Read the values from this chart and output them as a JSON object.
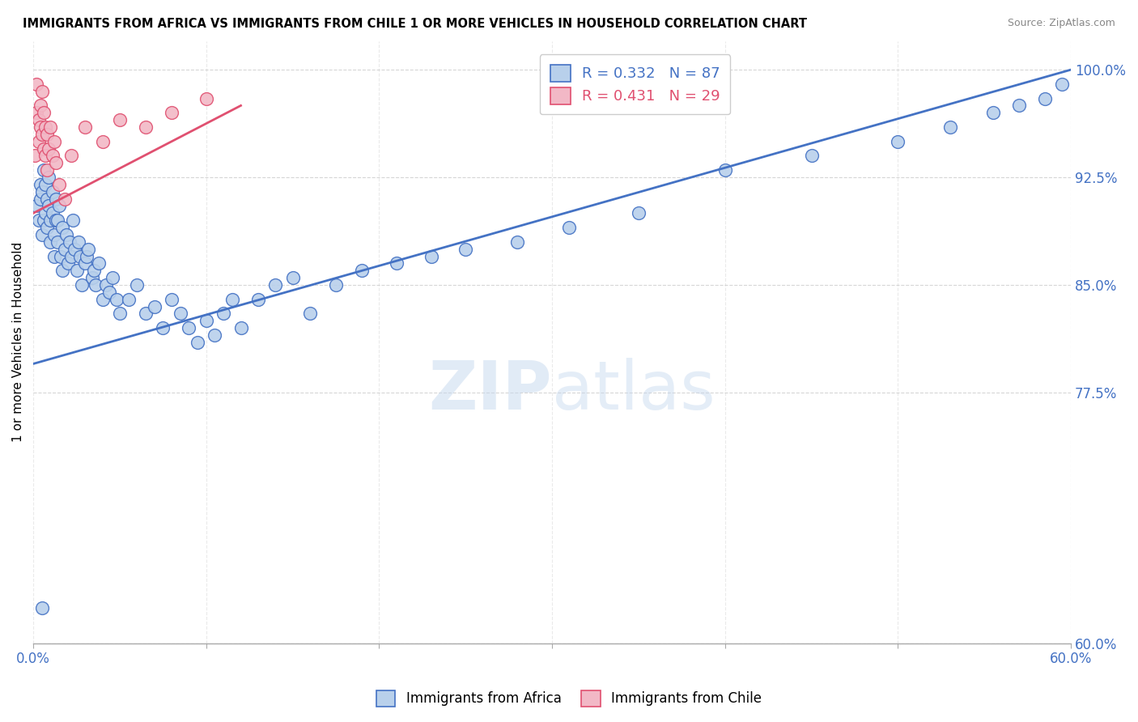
{
  "title": "IMMIGRANTS FROM AFRICA VS IMMIGRANTS FROM CHILE 1 OR MORE VEHICLES IN HOUSEHOLD CORRELATION CHART",
  "source": "Source: ZipAtlas.com",
  "ylabel": "1 or more Vehicles in Household",
  "yticks": [
    "100.0%",
    "92.5%",
    "85.0%",
    "77.5%",
    "60.0%"
  ],
  "ytick_vals": [
    1.0,
    0.925,
    0.85,
    0.775,
    0.6
  ],
  "xlim": [
    0.0,
    0.6
  ],
  "ylim": [
    0.6,
    1.02
  ],
  "africa_R": "0.332",
  "africa_N": "87",
  "chile_R": "0.431",
  "chile_N": "29",
  "africa_color": "#b8d0eb",
  "chile_color": "#f2b8c6",
  "africa_line_color": "#4472c4",
  "chile_line_color": "#e05070",
  "legend_africa": "Immigrants from Africa",
  "legend_chile": "Immigrants from Chile",
  "africa_x": [
    0.002,
    0.003,
    0.004,
    0.004,
    0.005,
    0.005,
    0.006,
    0.006,
    0.007,
    0.007,
    0.008,
    0.008,
    0.009,
    0.009,
    0.01,
    0.01,
    0.011,
    0.011,
    0.012,
    0.012,
    0.013,
    0.013,
    0.014,
    0.014,
    0.015,
    0.016,
    0.017,
    0.017,
    0.018,
    0.019,
    0.02,
    0.021,
    0.022,
    0.023,
    0.024,
    0.025,
    0.026,
    0.027,
    0.028,
    0.03,
    0.031,
    0.032,
    0.034,
    0.035,
    0.036,
    0.038,
    0.04,
    0.042,
    0.044,
    0.046,
    0.048,
    0.05,
    0.055,
    0.06,
    0.065,
    0.07,
    0.075,
    0.08,
    0.085,
    0.09,
    0.095,
    0.1,
    0.105,
    0.11,
    0.115,
    0.12,
    0.13,
    0.14,
    0.15,
    0.16,
    0.175,
    0.19,
    0.21,
    0.23,
    0.25,
    0.28,
    0.31,
    0.35,
    0.4,
    0.45,
    0.5,
    0.53,
    0.555,
    0.57,
    0.585,
    0.595,
    0.005
  ],
  "africa_y": [
    0.905,
    0.895,
    0.91,
    0.92,
    0.885,
    0.915,
    0.895,
    0.93,
    0.9,
    0.92,
    0.89,
    0.91,
    0.905,
    0.925,
    0.895,
    0.88,
    0.915,
    0.9,
    0.885,
    0.87,
    0.895,
    0.91,
    0.88,
    0.895,
    0.905,
    0.87,
    0.89,
    0.86,
    0.875,
    0.885,
    0.865,
    0.88,
    0.87,
    0.895,
    0.875,
    0.86,
    0.88,
    0.87,
    0.85,
    0.865,
    0.87,
    0.875,
    0.855,
    0.86,
    0.85,
    0.865,
    0.84,
    0.85,
    0.845,
    0.855,
    0.84,
    0.83,
    0.84,
    0.85,
    0.83,
    0.835,
    0.82,
    0.84,
    0.83,
    0.82,
    0.81,
    0.825,
    0.815,
    0.83,
    0.84,
    0.82,
    0.84,
    0.85,
    0.855,
    0.83,
    0.85,
    0.86,
    0.865,
    0.87,
    0.875,
    0.88,
    0.89,
    0.9,
    0.93,
    0.94,
    0.95,
    0.96,
    0.97,
    0.975,
    0.98,
    0.99,
    0.625
  ],
  "chile_x": [
    0.001,
    0.002,
    0.002,
    0.003,
    0.003,
    0.004,
    0.004,
    0.005,
    0.005,
    0.006,
    0.006,
    0.007,
    0.007,
    0.008,
    0.008,
    0.009,
    0.01,
    0.011,
    0.012,
    0.013,
    0.015,
    0.018,
    0.022,
    0.03,
    0.04,
    0.05,
    0.065,
    0.08,
    0.1
  ],
  "chile_y": [
    0.94,
    0.99,
    0.97,
    0.95,
    0.965,
    0.975,
    0.96,
    0.985,
    0.955,
    0.97,
    0.945,
    0.96,
    0.94,
    0.93,
    0.955,
    0.945,
    0.96,
    0.94,
    0.95,
    0.935,
    0.92,
    0.91,
    0.94,
    0.96,
    0.95,
    0.965,
    0.96,
    0.97,
    0.98
  ],
  "africa_line_x": [
    0.0,
    0.6
  ],
  "africa_line_y": [
    0.795,
    1.0
  ],
  "chile_line_x": [
    0.0,
    0.12
  ],
  "chile_line_y": [
    0.9,
    0.975
  ],
  "watermark_text": "ZIPatlas",
  "watermark_fontsize": 60
}
